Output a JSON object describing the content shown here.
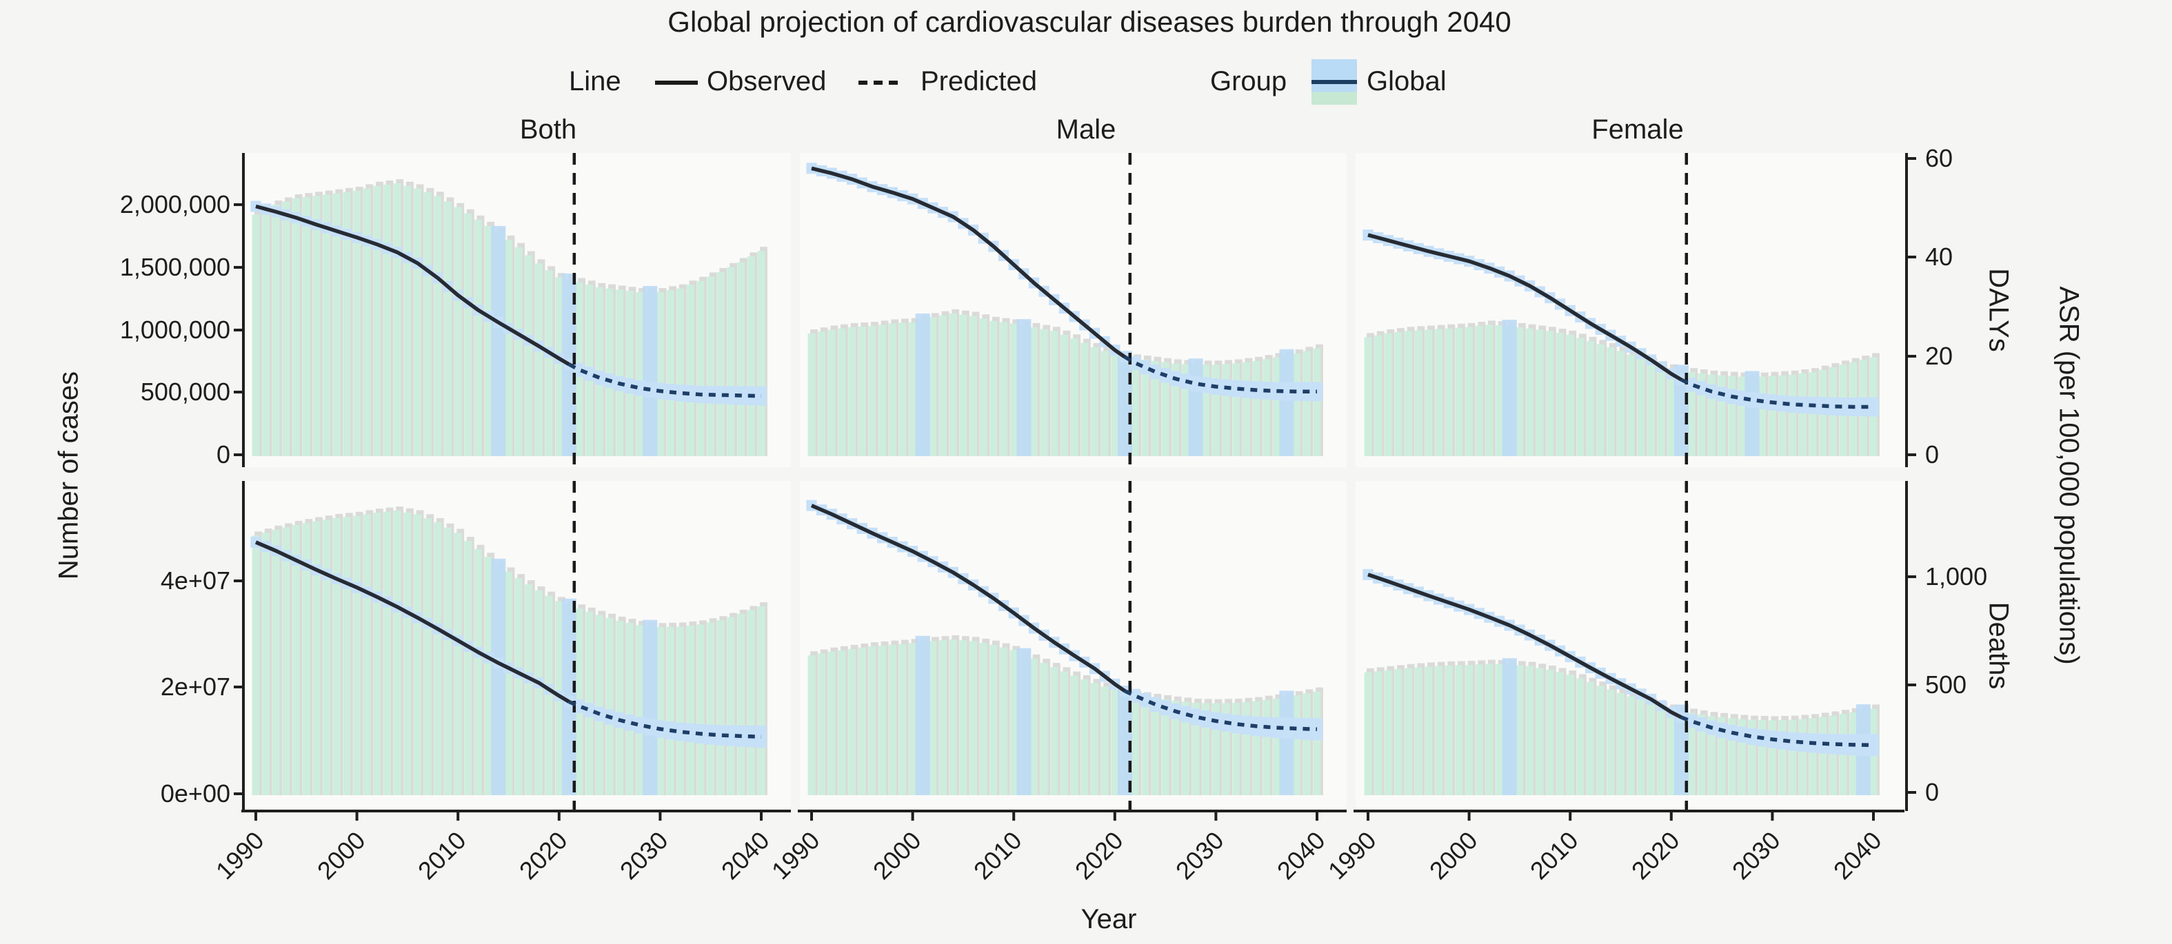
{
  "title": "Global projection of cardiovascular diseases burden through 2040",
  "legend": {
    "line_title": "Line",
    "observed_label": "Observed",
    "predicted_label": "Predicted",
    "group_title": "Group",
    "group_label": "Global"
  },
  "facets": {
    "columns": [
      "Both",
      "Male",
      "Female"
    ],
    "rows": [
      "DALYs",
      "Deaths"
    ]
  },
  "axes": {
    "x_label": "Year",
    "x_ticks": [
      "1990",
      "2000",
      "2010",
      "2020",
      "2030",
      "2040"
    ],
    "y_left_label": "Number of cases",
    "y_left_ticks_row1": [
      "0",
      "500,000",
      "1,000,000",
      "1,500,000",
      "2,000,000"
    ],
    "y_left_ticks_row2": [
      "0e+00",
      "2e+07",
      "4e+07"
    ],
    "y_right_strip_row1": "DALYs",
    "y_right_strip_row2": "Deaths",
    "y_right_outer_label": "ASR (per 100,000 populations)",
    "y_right_ticks_row1": [
      "0",
      "20",
      "40",
      "60"
    ],
    "y_right_ticks_row2": [
      "0",
      "500",
      "1,000"
    ]
  },
  "colors": {
    "figure_bg": "#f5f5f3",
    "panel_bg": "#fafaf9",
    "bar_green": "#cdeedd",
    "bar_shadow": "#dadad8",
    "ribbon_blue": "#c6e0f8",
    "highlight_blue": "#bddaf5",
    "observed_line": "#262b33",
    "predicted_line": "#1e3e66",
    "axis": "#1f1f1f",
    "dashed_rule": "#1a1a1a"
  },
  "chart_data": {
    "type": "bar+line",
    "x_range": [
      1990,
      2040
    ],
    "observed_end_year": 2021,
    "vline_year": 2021.5,
    "group": "Global",
    "anchor_years": [
      1990,
      1992,
      1994,
      1996,
      1998,
      2000,
      2002,
      2004,
      2006,
      2008,
      2010,
      2012,
      2014,
      2016,
      2018,
      2020,
      2021,
      2022,
      2024,
      2026,
      2028,
      2030,
      2032,
      2034,
      2036,
      2038,
      2040
    ],
    "panels": [
      {
        "facet_col": "Both",
        "facet_row": "DALYs",
        "col": 0,
        "row": 0,
        "bars_ylabel": "Number of cases",
        "line_ylabel": "ASR DALYs per 100,000",
        "y_left_range": [
          0,
          2400000
        ],
        "y_right_range": [
          0,
          60
        ],
        "bars": [
          1920000,
          2000000,
          2050000,
          2070000,
          2090000,
          2110000,
          2150000,
          2170000,
          2130000,
          2070000,
          1980000,
          1880000,
          1780000,
          1660000,
          1530000,
          1420000,
          1400000,
          1380000,
          1340000,
          1320000,
          1300000,
          1300000,
          1330000,
          1390000,
          1460000,
          1540000,
          1630000
        ],
        "asr": [
          50.3,
          49.2,
          48,
          46.6,
          45.3,
          44,
          42.6,
          41,
          38.8,
          35.8,
          32.3,
          29.3,
          26.8,
          24.4,
          22,
          19.5,
          18.3,
          17.2,
          15.6,
          14.4,
          13.5,
          12.9,
          12.5,
          12.2,
          12.1,
          12,
          11.9
        ],
        "highlight_years": [
          2014,
          2021,
          2029
        ]
      },
      {
        "facet_col": "Male",
        "facet_row": "DALYs",
        "col": 1,
        "row": 0,
        "bars_ylabel": "Number of cases",
        "line_ylabel": "ASR DALYs per 100,000",
        "y_left_range": [
          0,
          2400000
        ],
        "y_right_range": [
          0,
          60
        ],
        "bars": [
          970000,
          1000000,
          1020000,
          1030000,
          1050000,
          1060000,
          1100000,
          1130000,
          1110000,
          1070000,
          1050000,
          1020000,
          990000,
          930000,
          860000,
          800000,
          780000,
          770000,
          750000,
          730000,
          720000,
          720000,
          730000,
          750000,
          780000,
          810000,
          850000
        ],
        "asr": [
          58,
          57,
          55.8,
          54.3,
          53.1,
          51.8,
          50,
          48.2,
          45.5,
          42.2,
          38.5,
          34.8,
          31.4,
          28,
          24.6,
          21.2,
          19.8,
          18.6,
          16.8,
          15.4,
          14.4,
          13.8,
          13.4,
          13.1,
          12.9,
          12.8,
          12.8
        ],
        "highlight_years": [
          2001,
          2011,
          2021,
          2028,
          2037
        ]
      },
      {
        "facet_col": "Female",
        "facet_row": "DALYs",
        "col": 2,
        "row": 0,
        "bars_ylabel": "Number of cases",
        "line_ylabel": "ASR DALYs per 100,000",
        "y_left_range": [
          0,
          2400000
        ],
        "y_right_range": [
          0,
          60
        ],
        "bars": [
          940000,
          970000,
          990000,
          1000000,
          1010000,
          1020000,
          1040000,
          1030000,
          1010000,
          990000,
          960000,
          910000,
          860000,
          800000,
          740000,
          690000,
          670000,
          660000,
          640000,
          630000,
          620000,
          630000,
          640000,
          660000,
          700000,
          740000,
          780000
        ],
        "asr": [
          44.5,
          43.4,
          42.3,
          41.2,
          40.2,
          39.2,
          37.8,
          36.2,
          34.2,
          31.8,
          29.2,
          26.6,
          24.2,
          21.8,
          19.2,
          16.4,
          15.2,
          14.2,
          12.8,
          11.8,
          11.1,
          10.6,
          10.2,
          10,
          9.8,
          9.7,
          9.7
        ],
        "highlight_years": [
          2004,
          2021,
          2028
        ]
      },
      {
        "facet_col": "Both",
        "facet_row": "Deaths",
        "col": 0,
        "row": 1,
        "bars_ylabel": "Number of cases",
        "line_ylabel": "ASR Deaths per 100,000",
        "y_left_range": [
          0,
          55000000
        ],
        "y_right_range": [
          0,
          1400
        ],
        "bars": [
          48500000,
          49600000,
          50500000,
          51200000,
          51800000,
          52200000,
          52800000,
          53200000,
          52500000,
          51000000,
          49000000,
          46000000,
          43000000,
          40500000,
          38200000,
          36200000,
          35500000,
          34800000,
          33600000,
          32500000,
          31700000,
          31300000,
          31400000,
          31800000,
          32600000,
          33800000,
          35200000
        ],
        "asr": [
          1160,
          1120,
          1076,
          1032,
          990,
          950,
          906,
          860,
          810,
          758,
          704,
          650,
          600,
          554,
          508,
          448,
          420,
          400,
          364,
          335,
          312,
          294,
          281,
          272,
          265,
          261,
          258
        ],
        "highlight_years": [
          2014,
          2021,
          2029
        ]
      },
      {
        "facet_col": "Male",
        "facet_row": "Deaths",
        "col": 1,
        "row": 1,
        "bars_ylabel": "Number of cases",
        "line_ylabel": "ASR Deaths per 100,000",
        "y_left_range": [
          0,
          55000000
        ],
        "y_right_range": [
          0,
          1400
        ],
        "bars": [
          26000000,
          26700000,
          27200000,
          27700000,
          28000000,
          28300000,
          28700000,
          29000000,
          28700000,
          28000000,
          27000000,
          25400000,
          23800000,
          22200000,
          20800000,
          19500000,
          19000000,
          18600000,
          18000000,
          17500000,
          17100000,
          17000000,
          17100000,
          17400000,
          17900000,
          18500000,
          19200000
        ],
        "asr": [
          1330,
          1290,
          1246,
          1202,
          1160,
          1118,
          1070,
          1020,
          962,
          900,
          832,
          762,
          696,
          634,
          574,
          502,
          470,
          448,
          408,
          376,
          350,
          331,
          317,
          307,
          300,
          296,
          293
        ],
        "highlight_years": [
          2001,
          2011,
          2021,
          2037
        ]
      },
      {
        "facet_col": "Female",
        "facet_row": "Deaths",
        "col": 2,
        "row": 1,
        "bars_ylabel": "Number of cases",
        "line_ylabel": "ASR Deaths per 100,000",
        "y_left_range": [
          0,
          55000000
        ],
        "y_right_range": [
          0,
          1400
        ],
        "bars": [
          22800000,
          23200000,
          23600000,
          23900000,
          24100000,
          24200000,
          24400000,
          24300000,
          24000000,
          23300000,
          22400000,
          21000000,
          19600000,
          18300000,
          17100000,
          16000000,
          15600000,
          15200000,
          14600000,
          14200000,
          13900000,
          13800000,
          13900000,
          14200000,
          14700000,
          15300000,
          16000000
        ],
        "asr": [
          1010,
          978,
          945,
          912,
          880,
          848,
          812,
          775,
          730,
          682,
          630,
          578,
          528,
          480,
          432,
          372,
          348,
          330,
          300,
          277,
          259,
          246,
          236,
          229,
          224,
          221,
          219
        ],
        "highlight_years": [
          2004,
          2021,
          2039
        ]
      }
    ]
  }
}
